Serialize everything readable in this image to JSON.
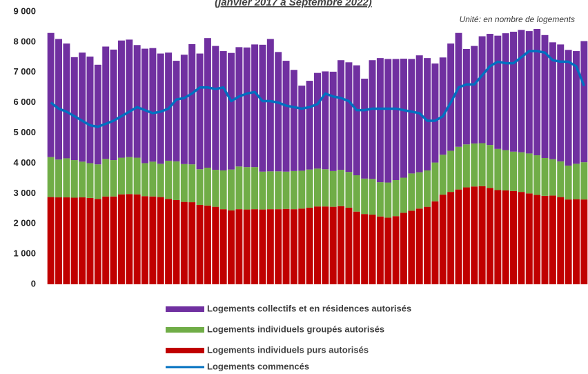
{
  "chart_data": {
    "type": "bar",
    "subtitle": "(janvier 2017 à Septembre 2022)",
    "annotation": "Unité: en nombre de logements",
    "categories": [
      null,
      null,
      null,
      null,
      null,
      null,
      null,
      null,
      null,
      null,
      null,
      null,
      null,
      null,
      null,
      null,
      null,
      null,
      null,
      null,
      null,
      null,
      null,
      null,
      null,
      null,
      null,
      null,
      null,
      null,
      null,
      null,
      null,
      null,
      null,
      null,
      null,
      null,
      null,
      null,
      null,
      null,
      null,
      null,
      null,
      null,
      null,
      null,
      null,
      null,
      null,
      null,
      null,
      null,
      null,
      null,
      null,
      null,
      null,
      null,
      null,
      null,
      null,
      null,
      null,
      null,
      null,
      null,
      null
    ],
    "series": [
      {
        "name": "Logements  collectifs et en résidences autorisés",
        "color": "#7030a0",
        "type": "bar",
        "values": [
          4100,
          3980,
          3790,
          3400,
          3600,
          3520,
          3290,
          3710,
          3650,
          3870,
          3880,
          3720,
          3780,
          3750,
          3640,
          3570,
          3320,
          3610,
          3970,
          3820,
          4280,
          4090,
          3940,
          3850,
          3940,
          3950,
          4050,
          4190,
          4370,
          3940,
          3660,
          3340,
          2810,
          2930,
          3160,
          3230,
          3280,
          3620,
          3620,
          3630,
          3300,
          3920,
          4100,
          4080,
          4000,
          3930,
          3780,
          3860,
          3710,
          3270,
          3210,
          3540,
          3760,
          3150,
          3220,
          3530,
          3670,
          3740,
          3860,
          3960,
          4040,
          4040,
          4170,
          4060,
          3860,
          3860,
          3820,
          3720,
          4000
        ]
      },
      {
        "name": "Logements individuels groupés autorisés",
        "color": "#70ad47",
        "type": "bar",
        "values": [
          1320,
          1250,
          1290,
          1240,
          1180,
          1150,
          1140,
          1240,
          1200,
          1210,
          1220,
          1210,
          1090,
          1150,
          1100,
          1260,
          1280,
          1250,
          1250,
          1180,
          1250,
          1220,
          1280,
          1350,
          1410,
          1400,
          1390,
          1250,
          1250,
          1250,
          1230,
          1260,
          1250,
          1260,
          1250,
          1230,
          1180,
          1200,
          1180,
          1200,
          1170,
          1180,
          1130,
          1160,
          1190,
          1160,
          1230,
          1200,
          1200,
          1280,
          1320,
          1360,
          1410,
          1420,
          1420,
          1420,
          1420,
          1360,
          1330,
          1300,
          1310,
          1320,
          1310,
          1250,
          1200,
          1180,
          1120,
          1170,
          1230
        ]
      },
      {
        "name": "Logements individuels purs autorisés",
        "color": "#c00000",
        "type": "bar",
        "values": [
          2880,
          2870,
          2870,
          2860,
          2870,
          2850,
          2820,
          2900,
          2900,
          2970,
          2980,
          2970,
          2910,
          2900,
          2880,
          2820,
          2780,
          2720,
          2710,
          2620,
          2600,
          2560,
          2480,
          2440,
          2480,
          2470,
          2480,
          2470,
          2480,
          2480,
          2490,
          2480,
          2500,
          2530,
          2570,
          2570,
          2560,
          2580,
          2530,
          2400,
          2320,
          2300,
          2240,
          2200,
          2250,
          2360,
          2430,
          2500,
          2560,
          2740,
          2960,
          3050,
          3130,
          3200,
          3230,
          3240,
          3180,
          3110,
          3100,
          3080,
          3050,
          3000,
          2950,
          2920,
          2930,
          2880,
          2800,
          2810,
          2800
        ]
      },
      {
        "name": "Logements commencés",
        "color": "#0070c0",
        "type": "line",
        "values": [
          6000,
          5800,
          5700,
          5550,
          5400,
          5250,
          5200,
          5300,
          5400,
          5550,
          5700,
          5850,
          5750,
          5650,
          5700,
          5800,
          6100,
          6150,
          6300,
          6500,
          6500,
          6450,
          6500,
          6050,
          6200,
          6300,
          6350,
          6050,
          6050,
          6000,
          5900,
          5850,
          5800,
          5850,
          5950,
          6300,
          6200,
          6150,
          6050,
          5750,
          5750,
          5800,
          5800,
          5800,
          5800,
          5750,
          5700,
          5650,
          5400,
          5400,
          5550,
          6000,
          6500,
          6600,
          6600,
          6900,
          7200,
          7350,
          7300,
          7300,
          7500,
          7700,
          7700,
          7650,
          7400,
          7350,
          7350,
          7200,
          6550
        ]
      }
    ],
    "ylim": [
      0,
      9000
    ],
    "yticks": [
      0,
      {
        "value": 1000,
        "label": "1 000"
      },
      {
        "value": 2000,
        "label": "2 000"
      },
      {
        "value": 3000,
        "label": "3 000"
      },
      {
        "value": 4000,
        "label": "4 000"
      },
      {
        "value": 5000,
        "label": "5 000"
      },
      {
        "value": 6000,
        "label": "6 000"
      },
      {
        "value": 7000,
        "label": "7 000"
      },
      {
        "value": 8000,
        "label": "8 000"
      },
      {
        "value": 9000,
        "label": "9 000"
      }
    ],
    "grid": false
  }
}
